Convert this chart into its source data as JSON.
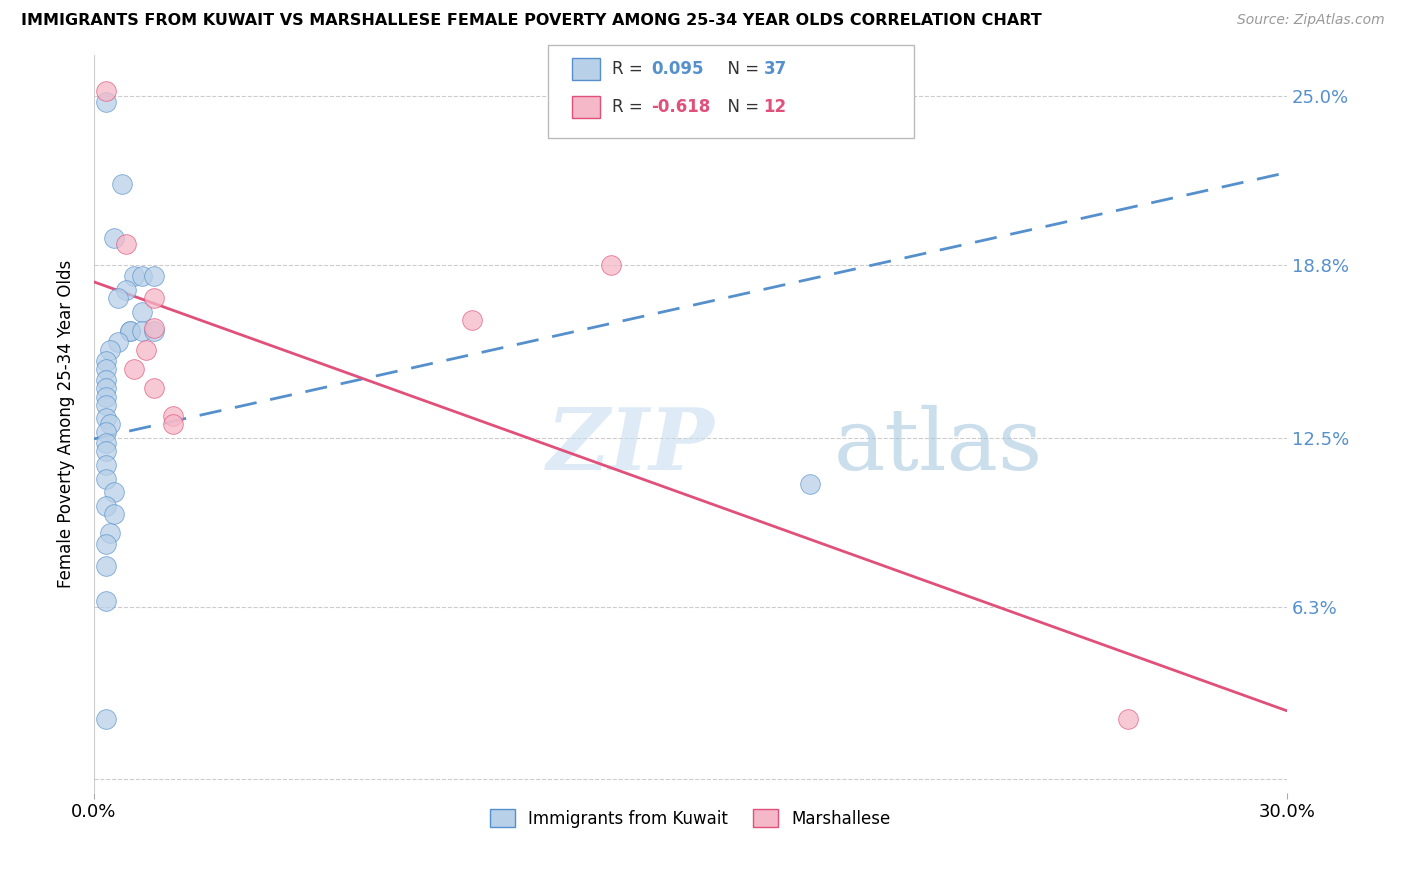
{
  "title": "IMMIGRANTS FROM KUWAIT VS MARSHALLESE FEMALE POVERTY AMONG 25-34 YEAR OLDS CORRELATION CHART",
  "source": "Source: ZipAtlas.com",
  "ylabel": "Female Poverty Among 25-34 Year Olds",
  "watermark": "ZIPatlas",
  "legend_blue_r": "0.095",
  "legend_blue_n": "37",
  "legend_pink_r": "-0.618",
  "legend_pink_n": "12",
  "blue_color": "#b8d0e8",
  "pink_color": "#f5b8c8",
  "blue_line_color": "#5590cc",
  "pink_line_color": "#e0507a",
  "blue_scatter": [
    [
      0.003,
      0.248
    ],
    [
      0.007,
      0.218
    ],
    [
      0.005,
      0.198
    ],
    [
      0.01,
      0.184
    ],
    [
      0.012,
      0.184
    ],
    [
      0.015,
      0.184
    ],
    [
      0.008,
      0.179
    ],
    [
      0.006,
      0.176
    ],
    [
      0.012,
      0.171
    ],
    [
      0.009,
      0.164
    ],
    [
      0.009,
      0.164
    ],
    [
      0.012,
      0.164
    ],
    [
      0.015,
      0.164
    ],
    [
      0.006,
      0.16
    ],
    [
      0.004,
      0.157
    ],
    [
      0.003,
      0.153
    ],
    [
      0.003,
      0.15
    ],
    [
      0.003,
      0.146
    ],
    [
      0.003,
      0.143
    ],
    [
      0.003,
      0.14
    ],
    [
      0.003,
      0.137
    ],
    [
      0.003,
      0.132
    ],
    [
      0.004,
      0.13
    ],
    [
      0.003,
      0.127
    ],
    [
      0.003,
      0.123
    ],
    [
      0.003,
      0.12
    ],
    [
      0.003,
      0.115
    ],
    [
      0.003,
      0.11
    ],
    [
      0.005,
      0.105
    ],
    [
      0.003,
      0.1
    ],
    [
      0.005,
      0.097
    ],
    [
      0.004,
      0.09
    ],
    [
      0.003,
      0.086
    ],
    [
      0.003,
      0.078
    ],
    [
      0.003,
      0.065
    ],
    [
      0.003,
      0.022
    ],
    [
      0.18,
      0.108
    ]
  ],
  "pink_scatter": [
    [
      0.003,
      0.252
    ],
    [
      0.008,
      0.196
    ],
    [
      0.015,
      0.176
    ],
    [
      0.015,
      0.165
    ],
    [
      0.013,
      0.157
    ],
    [
      0.01,
      0.15
    ],
    [
      0.015,
      0.143
    ],
    [
      0.02,
      0.133
    ],
    [
      0.02,
      0.13
    ],
    [
      0.13,
      0.188
    ],
    [
      0.095,
      0.168
    ],
    [
      0.26,
      0.022
    ]
  ],
  "blue_line_x": [
    0.0,
    0.3
  ],
  "blue_line_y": [
    0.1245,
    0.222
  ],
  "pink_line_x": [
    0.0,
    0.3
  ],
  "pink_line_y": [
    0.182,
    0.025
  ],
  "xmin": 0.0,
  "xmax": 0.3,
  "ymin": -0.005,
  "ymax": 0.265,
  "ytick_vals": [
    0.0,
    0.063,
    0.125,
    0.188,
    0.25
  ],
  "ytick_labels": [
    "",
    "6.3%",
    "12.5%",
    "18.8%",
    "25.0%"
  ]
}
